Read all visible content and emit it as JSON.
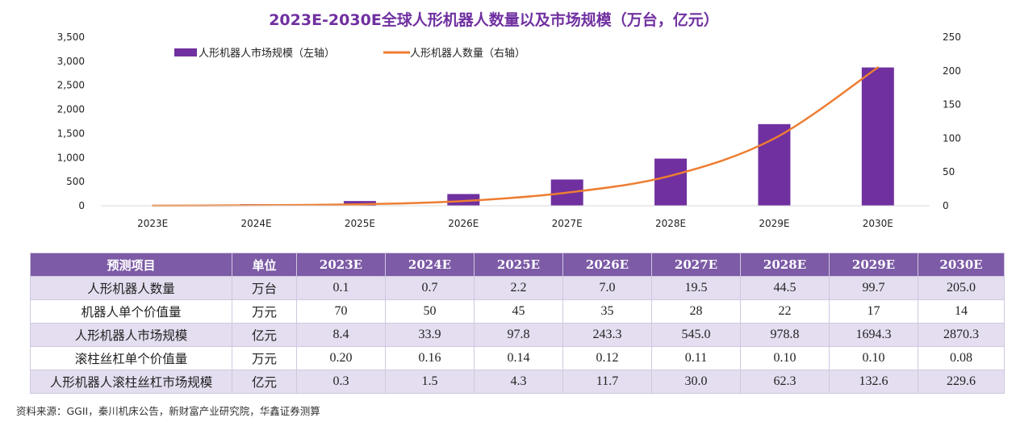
{
  "colors": {
    "bar": "#7030A0",
    "line": "#ED7D31",
    "title": "#7030A0",
    "table_header_bg": "#7D5BA6",
    "table_row_alt_bg": "#E4DEF0",
    "table_row_bg": "#FFFFFF"
  },
  "chart_data": {
    "type": "bar",
    "title": "2023E-2030E全球人形机器人数量以及市场规模（万台，亿元）",
    "categories": [
      "2023E",
      "2024E",
      "2025E",
      "2026E",
      "2027E",
      "2028E",
      "2029E",
      "2030E"
    ],
    "series": [
      {
        "name": "人形机器人市场规模（左轴）",
        "type": "bar",
        "axis": "left",
        "values": [
          8.4,
          33.9,
          97.8,
          243.3,
          545.0,
          978.8,
          1694.3,
          2870.3
        ]
      },
      {
        "name": "人形机器人数量（右轴）",
        "type": "line",
        "axis": "right",
        "values": [
          0.1,
          0.7,
          2.2,
          7.0,
          19.5,
          44.5,
          99.7,
          205.0
        ]
      }
    ],
    "y_left": {
      "min": 0,
      "max": 3500,
      "ticks": [
        "0",
        "500",
        "1,000",
        "1,500",
        "2,000",
        "2,500",
        "3,000",
        "3,500"
      ]
    },
    "y_right": {
      "min": 0,
      "max": 250,
      "ticks": [
        "0",
        "50",
        "100",
        "150",
        "200",
        "250"
      ]
    },
    "grid": false,
    "legend_position": "top-left"
  },
  "table": {
    "header": [
      "预测项目",
      "单位",
      "2023E",
      "2024E",
      "2025E",
      "2026E",
      "2027E",
      "2028E",
      "2029E",
      "2030E"
    ],
    "rows": [
      {
        "label": "人形机器人数量",
        "unit": "万台",
        "values": [
          "0.1",
          "0.7",
          "2.2",
          "7.0",
          "19.5",
          "44.5",
          "99.7",
          "205.0"
        ]
      },
      {
        "label": "机器人单个价值量",
        "unit": "万元",
        "values": [
          "70",
          "50",
          "45",
          "35",
          "28",
          "22",
          "17",
          "14"
        ]
      },
      {
        "label": "人形机器人市场规模",
        "unit": "亿元",
        "values": [
          "8.4",
          "33.9",
          "97.8",
          "243.3",
          "545.0",
          "978.8",
          "1694.3",
          "2870.3"
        ]
      },
      {
        "label": "滚柱丝杠单个价值量",
        "unit": "万元",
        "values": [
          "0.20",
          "0.16",
          "0.14",
          "0.12",
          "0.11",
          "0.10",
          "0.10",
          "0.08"
        ]
      },
      {
        "label": "人形机器人滚柱丝杠市场规模",
        "unit": "亿元",
        "values": [
          "0.3",
          "1.5",
          "4.3",
          "11.7",
          "30.0",
          "62.3",
          "132.6",
          "229.6"
        ]
      }
    ]
  },
  "source": "资料来源：GGII，秦川机床公告，新财富产业研究院，华鑫证券测算"
}
